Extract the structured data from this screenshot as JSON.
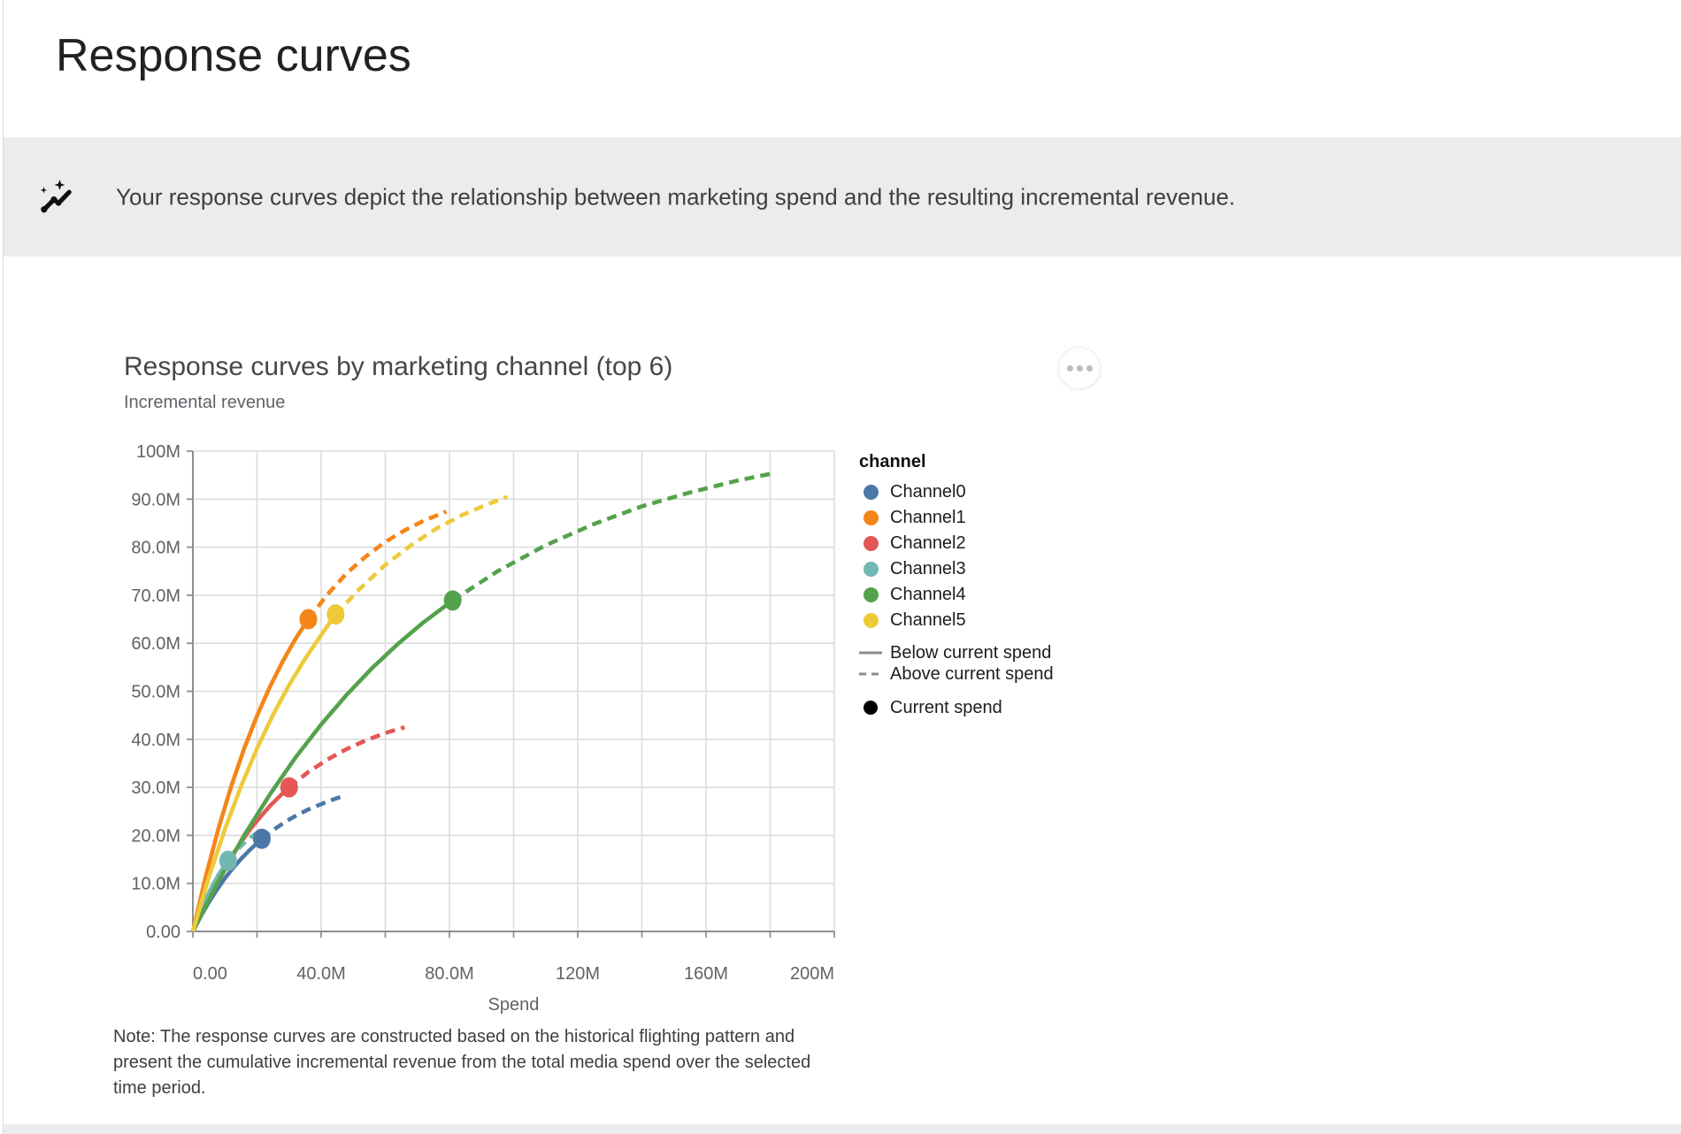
{
  "page": {
    "title": "Response curves",
    "banner": {
      "icon": "insights-icon",
      "text": "Your response curves depict the relationship between marketing spend and the resulting incremental revenue."
    },
    "menu_icon": "more-options-icon",
    "note": "Note: The response curves are constructed based on the historical flighting pattern and present the cumulative incremental revenue from the total media spend over the selected time period."
  },
  "chart_data": {
    "type": "line",
    "title": "Response curves by marketing channel (top 6)",
    "xlabel": "Spend",
    "ylabel": "Incremental revenue",
    "x_max_m": 200,
    "y_max_m": 100,
    "x_grid_step_m": 20,
    "y_grid_step_m": 10,
    "grid": true,
    "x_ticks": [
      {
        "v": 0,
        "label": "0.00"
      },
      {
        "v": 40,
        "label": "40.0M"
      },
      {
        "v": 80,
        "label": "80.0M"
      },
      {
        "v": 120,
        "label": "120M"
      },
      {
        "v": 160,
        "label": "160M"
      },
      {
        "v": 200,
        "label": "200M"
      }
    ],
    "y_ticks": [
      {
        "v": 0,
        "label": "0.00"
      },
      {
        "v": 10,
        "label": "10.0M"
      },
      {
        "v": 20,
        "label": "20.0M"
      },
      {
        "v": 30,
        "label": "30.0M"
      },
      {
        "v": 40,
        "label": "40.0M"
      },
      {
        "v": 50,
        "label": "50.0M"
      },
      {
        "v": 60,
        "label": "60.0M"
      },
      {
        "v": 70,
        "label": "70.0M"
      },
      {
        "v": 80,
        "label": "80.0M"
      },
      {
        "v": 90,
        "label": "90.0M"
      },
      {
        "v": 100,
        "label": "100M"
      }
    ],
    "units": "millions",
    "series": [
      {
        "name": "Channel0",
        "color": "#4c78a8",
        "current_spend": 21.5,
        "current_revenue": 19.3,
        "points": [
          [
            0,
            0
          ],
          [
            2.5,
            3.2
          ],
          [
            5,
            6.1
          ],
          [
            7.5,
            8.7
          ],
          [
            10,
            11.1
          ],
          [
            12.5,
            13.2
          ],
          [
            15,
            15.1
          ],
          [
            17.5,
            16.8
          ],
          [
            20,
            18.4
          ],
          [
            21.5,
            19.3
          ],
          [
            24,
            20.6
          ],
          [
            27,
            22.0
          ],
          [
            30,
            23.3
          ],
          [
            33,
            24.4
          ],
          [
            36,
            25.4
          ],
          [
            40,
            26.5
          ],
          [
            43,
            27.3
          ],
          [
            46,
            28.0
          ]
        ]
      },
      {
        "name": "Channel1",
        "color": "#f58518",
        "current_spend": 36,
        "current_revenue": 65.0,
        "points": [
          [
            0,
            0
          ],
          [
            4,
            11.4
          ],
          [
            8,
            21.5
          ],
          [
            12,
            30.3
          ],
          [
            16,
            38.1
          ],
          [
            20,
            44.9
          ],
          [
            24,
            50.9
          ],
          [
            28,
            56.2
          ],
          [
            32,
            60.9
          ],
          [
            36,
            65.0
          ],
          [
            42,
            70.2
          ],
          [
            48,
            74.6
          ],
          [
            54,
            78.1
          ],
          [
            60,
            81.1
          ],
          [
            66,
            83.5
          ],
          [
            72,
            85.5
          ],
          [
            79,
            87.4
          ]
        ]
      },
      {
        "name": "Channel2",
        "color": "#e45756",
        "current_spend": 30,
        "current_revenue": 30.0,
        "points": [
          [
            0,
            0
          ],
          [
            3,
            4.5
          ],
          [
            6,
            8.6
          ],
          [
            9,
            12.2
          ],
          [
            12,
            15.6
          ],
          [
            15,
            18.6
          ],
          [
            18,
            21.4
          ],
          [
            21,
            23.8
          ],
          [
            24,
            26.1
          ],
          [
            27,
            28.1
          ],
          [
            30,
            30.0
          ],
          [
            36,
            33.2
          ],
          [
            42,
            35.8
          ],
          [
            48,
            38.0
          ],
          [
            54,
            39.8
          ],
          [
            60,
            41.3
          ],
          [
            66,
            42.5
          ]
        ]
      },
      {
        "name": "Channel3",
        "color": "#72b7b2",
        "current_spend": 11,
        "current_revenue": 14.7,
        "points": [
          [
            0,
            0
          ],
          [
            2,
            3.6
          ],
          [
            4,
            6.7
          ],
          [
            6,
            9.4
          ],
          [
            8,
            11.8
          ],
          [
            10,
            13.8
          ],
          [
            11,
            14.7
          ],
          [
            13,
            16.3
          ],
          [
            15,
            17.8
          ],
          [
            17,
            19.0
          ],
          [
            19,
            20.1
          ],
          [
            21.5,
            21.2
          ]
        ]
      },
      {
        "name": "Channel4",
        "color": "#54a24b",
        "current_spend": 81,
        "current_revenue": 68.9,
        "points": [
          [
            0,
            0
          ],
          [
            8,
            10.5
          ],
          [
            16,
            20.0
          ],
          [
            24,
            28.5
          ],
          [
            32,
            36.2
          ],
          [
            40,
            43.1
          ],
          [
            48,
            49.3
          ],
          [
            56,
            54.9
          ],
          [
            64,
            59.9
          ],
          [
            72,
            64.4
          ],
          [
            81,
            68.9
          ],
          [
            95,
            75.0
          ],
          [
            110,
            80.4
          ],
          [
            125,
            84.8
          ],
          [
            140,
            88.5
          ],
          [
            155,
            91.4
          ],
          [
            170,
            93.9
          ],
          [
            181,
            95.4
          ]
        ]
      },
      {
        "name": "Channel5",
        "color": "#eeca3b",
        "current_spend": 44.5,
        "current_revenue": 66.0,
        "points": [
          [
            0,
            0
          ],
          [
            5,
            11.3
          ],
          [
            10,
            21.3
          ],
          [
            15,
            30.2
          ],
          [
            20,
            38.1
          ],
          [
            25,
            45.1
          ],
          [
            30,
            51.3
          ],
          [
            35,
            56.8
          ],
          [
            40,
            61.7
          ],
          [
            44.5,
            66.0
          ],
          [
            52,
            71.3
          ],
          [
            60,
            76.3
          ],
          [
            68,
            80.4
          ],
          [
            76,
            83.9
          ],
          [
            84,
            86.7
          ],
          [
            91,
            88.7
          ],
          [
            98,
            90.5
          ]
        ]
      }
    ],
    "legend": {
      "title": "channel",
      "line_styles": [
        {
          "label": "Below current spend",
          "style": "solid"
        },
        {
          "label": "Above current spend",
          "style": "dashed"
        }
      ],
      "point_label": "Current spend",
      "position": "right"
    }
  }
}
